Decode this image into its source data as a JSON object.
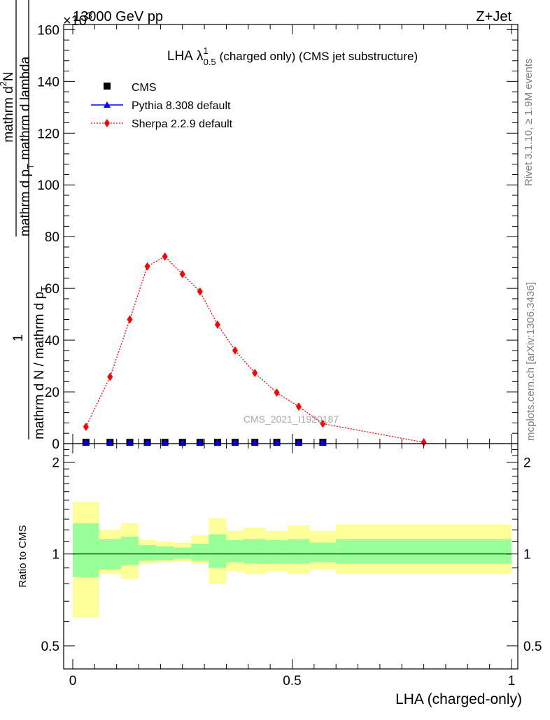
{
  "header": {
    "left": "13000 GeV pp",
    "right": "Z+Jet",
    "multiplier": "×10",
    "multiplier_exp": "3"
  },
  "side_labels": {
    "rivet": "Rivet 3.1.10, ≥ 1.9M events",
    "mcplots": "mcplots.cern.ch [arXiv:1306.3436]"
  },
  "watermark": "CMS_2021_I1920187",
  "colors": {
    "data": "#000000",
    "pythia": "#0000ff",
    "sherpa": "#ff0000",
    "band_inner": "#99ff99",
    "band_outer": "#ffff99"
  },
  "chart_data": [
    {
      "type": "scatter",
      "title_main": "LHA",
      "title_sym": "λ",
      "title_sup": "1",
      "title_sub": "0.5",
      "title_rest": "(charged only) (CMS jet substructure)",
      "ylabel_top_numer": "mathrm d",
      "ylabel_top_numer_sup": "2",
      "ylabel_top_numer_tail": "N",
      "ylabel_top_denom": "mathrm d p",
      "ylabel_top_denom_sub": "T",
      "ylabel_top_denom_tail": " mathrm d lambda",
      "ylabel_front_numer": "1",
      "ylabel_front_denom": "mathrm d N / mathrm d p",
      "ylabel_front_denom_sub": "T",
      "ylim": [
        0,
        162
      ],
      "yticks": [
        "0",
        "20",
        "40",
        "60",
        "80",
        "100",
        "120",
        "140",
        "160"
      ],
      "ytick_values": [
        0,
        20,
        40,
        60,
        80,
        100,
        120,
        140,
        160
      ],
      "legend": [
        {
          "key": "cms",
          "label": "CMS"
        },
        {
          "key": "pythia",
          "label": "Pythia 8.308 default"
        },
        {
          "key": "sherpa",
          "label": "Sherpa 2.2.9 default"
        }
      ],
      "series": [
        {
          "name": "CMS",
          "x": [
            0.03,
            0.085,
            0.13,
            0.17,
            0.21,
            0.25,
            0.29,
            0.33,
            0.37,
            0.415,
            0.465,
            0.515,
            0.57
          ],
          "values": [
            0.5,
            0.5,
            0.5,
            0.5,
            0.5,
            0.5,
            0.5,
            0.5,
            0.5,
            0.5,
            0.5,
            0.5,
            0.5
          ]
        },
        {
          "name": "Pythia 8.308 default",
          "x": [
            0.03,
            0.085,
            0.13,
            0.17,
            0.21,
            0.25,
            0.29,
            0.33,
            0.37,
            0.415,
            0.465,
            0.515,
            0.57
          ],
          "values": [
            0.5,
            0.5,
            0.5,
            0.5,
            0.5,
            0.5,
            0.5,
            0.5,
            0.5,
            0.5,
            0.5,
            0.5,
            0.5
          ]
        },
        {
          "name": "Sherpa 2.2.9 default",
          "x": [
            0.03,
            0.085,
            0.13,
            0.17,
            0.21,
            0.25,
            0.29,
            0.33,
            0.37,
            0.415,
            0.465,
            0.515,
            0.57,
            0.8
          ],
          "values": [
            6.5,
            25.8,
            48,
            68.5,
            72.3,
            65.5,
            58.8,
            46,
            36,
            27.3,
            19.7,
            14.3,
            7.7,
            0.5
          ]
        }
      ]
    },
    {
      "type": "area",
      "ylabel": "Ratio to CMS",
      "ylim": [
        0.42,
        2.3
      ],
      "yticks": [
        "0.5",
        "1",
        "2"
      ],
      "ytick_values": [
        0.5,
        1,
        2
      ],
      "xlabel": "LHA (charged-only)",
      "xlim": [
        0,
        1
      ],
      "xticks": [
        "0",
        "0.5",
        "1"
      ],
      "xtick_values": [
        0,
        0.5,
        1
      ],
      "bins": [
        {
          "lo": 0.0,
          "hi": 0.06,
          "inner": [
            0.84,
            1.26
          ],
          "outer": [
            0.62,
            1.48
          ]
        },
        {
          "lo": 0.06,
          "hi": 0.11,
          "inner": [
            0.89,
            1.12
          ],
          "outer": [
            0.86,
            1.2
          ]
        },
        {
          "lo": 0.11,
          "hi": 0.15,
          "inner": [
            0.92,
            1.14
          ],
          "outer": [
            0.83,
            1.26
          ]
        },
        {
          "lo": 0.15,
          "hi": 0.19,
          "inner": [
            0.95,
            1.07
          ],
          "outer": [
            0.93,
            1.11
          ]
        },
        {
          "lo": 0.19,
          "hi": 0.23,
          "inner": [
            0.955,
            1.06
          ],
          "outer": [
            0.94,
            1.1
          ]
        },
        {
          "lo": 0.23,
          "hi": 0.27,
          "inner": [
            0.965,
            1.05
          ],
          "outer": [
            0.945,
            1.09
          ]
        },
        {
          "lo": 0.27,
          "hi": 0.31,
          "inner": [
            0.95,
            1.08
          ],
          "outer": [
            0.93,
            1.15
          ]
        },
        {
          "lo": 0.31,
          "hi": 0.35,
          "inner": [
            0.9,
            1.16
          ],
          "outer": [
            0.8,
            1.31
          ]
        },
        {
          "lo": 0.35,
          "hi": 0.39,
          "inner": [
            0.94,
            1.11
          ],
          "outer": [
            0.88,
            1.19
          ]
        },
        {
          "lo": 0.39,
          "hi": 0.44,
          "inner": [
            0.93,
            1.12
          ],
          "outer": [
            0.86,
            1.22
          ]
        },
        {
          "lo": 0.44,
          "hi": 0.49,
          "inner": [
            0.93,
            1.11
          ],
          "outer": [
            0.88,
            1.19
          ]
        },
        {
          "lo": 0.49,
          "hi": 0.54,
          "inner": [
            0.93,
            1.12
          ],
          "outer": [
            0.86,
            1.24
          ]
        },
        {
          "lo": 0.54,
          "hi": 0.6,
          "inner": [
            0.94,
            1.09
          ],
          "outer": [
            0.89,
            1.19
          ]
        },
        {
          "lo": 0.6,
          "hi": 1.0,
          "inner": [
            0.93,
            1.12
          ],
          "outer": [
            0.86,
            1.25
          ]
        }
      ],
      "reference": 1
    }
  ]
}
